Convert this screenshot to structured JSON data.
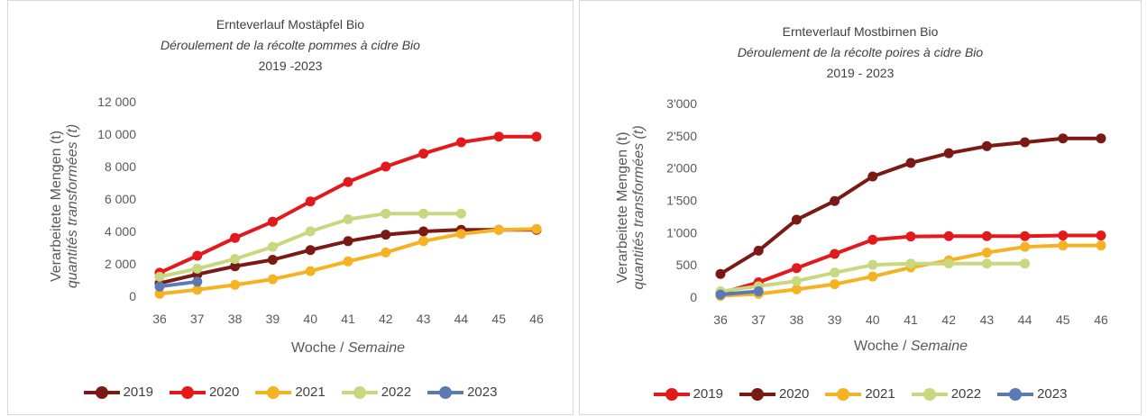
{
  "chart_data": [
    {
      "type": "line",
      "title": "Ernteverlauf Mostäpfel Bio",
      "subtitle": "Déroulement de la récolte pommes à cidre Bio",
      "period": "2019 -2023",
      "ylabel": "Verarbeitete Mengen (t)",
      "ylabel_fr": "quantités transformées (t)",
      "xlabel": "Woche /",
      "xlabel_fr": "Semaine",
      "ylim": [
        0,
        12000
      ],
      "yticks": [
        0,
        2000,
        4000,
        6000,
        8000,
        10000,
        12000
      ],
      "ytick_labels": [
        "0",
        "2 000",
        "4 000",
        "6 000",
        "8 000",
        "10 000",
        "12 000"
      ],
      "categories": [
        "36",
        "37",
        "38",
        "39",
        "40",
        "41",
        "42",
        "43",
        "44",
        "45",
        "46"
      ],
      "legend_position": "bottom",
      "series": [
        {
          "name": "2019",
          "color": "#7b1a14",
          "values": [
            800,
            1350,
            1850,
            2250,
            2850,
            3400,
            3800,
            4000,
            4100,
            4100,
            4100
          ]
        },
        {
          "name": "2020",
          "color": "#e31a1c",
          "values": [
            1450,
            2500,
            3600,
            4600,
            5850,
            7050,
            8000,
            8800,
            9500,
            9850,
            9850
          ]
        },
        {
          "name": "2021",
          "color": "#f5b324",
          "values": [
            150,
            400,
            700,
            1050,
            1550,
            2150,
            2700,
            3400,
            3850,
            4100,
            4150
          ]
        },
        {
          "name": "2022",
          "color": "#c8d87e",
          "values": [
            1200,
            1700,
            2300,
            3050,
            4000,
            4750,
            5100,
            5100,
            5100,
            null,
            null
          ]
        },
        {
          "name": "2023",
          "color": "#5b79b3",
          "values": [
            600,
            900,
            null,
            null,
            null,
            null,
            null,
            null,
            null,
            null,
            null
          ]
        }
      ]
    },
    {
      "type": "line",
      "title": "Ernteverlauf Mostbirnen Bio",
      "subtitle": "Déroulement de la récolte poires à cidre Bio",
      "period": "2019 - 2023",
      "ylabel": "Verarbeitete Mengen (t)",
      "ylabel_fr": "quantités transformées (t)",
      "xlabel": "Woche /",
      "xlabel_fr": "Semaine",
      "ylim": [
        0,
        3000
      ],
      "yticks": [
        0,
        500,
        1000,
        1500,
        2000,
        2500,
        3000
      ],
      "ytick_labels": [
        "0",
        "500",
        "1'000",
        "1'500",
        "2'000",
        "2'500",
        "3'000"
      ],
      "categories": [
        "36",
        "37",
        "38",
        "39",
        "40",
        "41",
        "42",
        "43",
        "44",
        "45",
        "46"
      ],
      "legend_position": "bottom",
      "series": [
        {
          "name": "2019",
          "color": "#e31a1c",
          "values": [
            60,
            230,
            450,
            670,
            890,
            940,
            945,
            945,
            945,
            955,
            955
          ]
        },
        {
          "name": "2020",
          "color": "#7b1a14",
          "values": [
            360,
            720,
            1200,
            1490,
            1870,
            2080,
            2230,
            2340,
            2400,
            2460,
            2460
          ]
        },
        {
          "name": "2021",
          "color": "#f5b324",
          "values": [
            20,
            50,
            120,
            200,
            320,
            460,
            570,
            690,
            780,
            800,
            800
          ]
        },
        {
          "name": "2022",
          "color": "#c8d87e",
          "values": [
            90,
            170,
            250,
            380,
            500,
            520,
            520,
            520,
            520,
            null,
            null
          ]
        },
        {
          "name": "2023",
          "color": "#5b79b3",
          "values": [
            40,
            90,
            null,
            null,
            null,
            null,
            null,
            null,
            null,
            null,
            null
          ]
        }
      ]
    }
  ]
}
